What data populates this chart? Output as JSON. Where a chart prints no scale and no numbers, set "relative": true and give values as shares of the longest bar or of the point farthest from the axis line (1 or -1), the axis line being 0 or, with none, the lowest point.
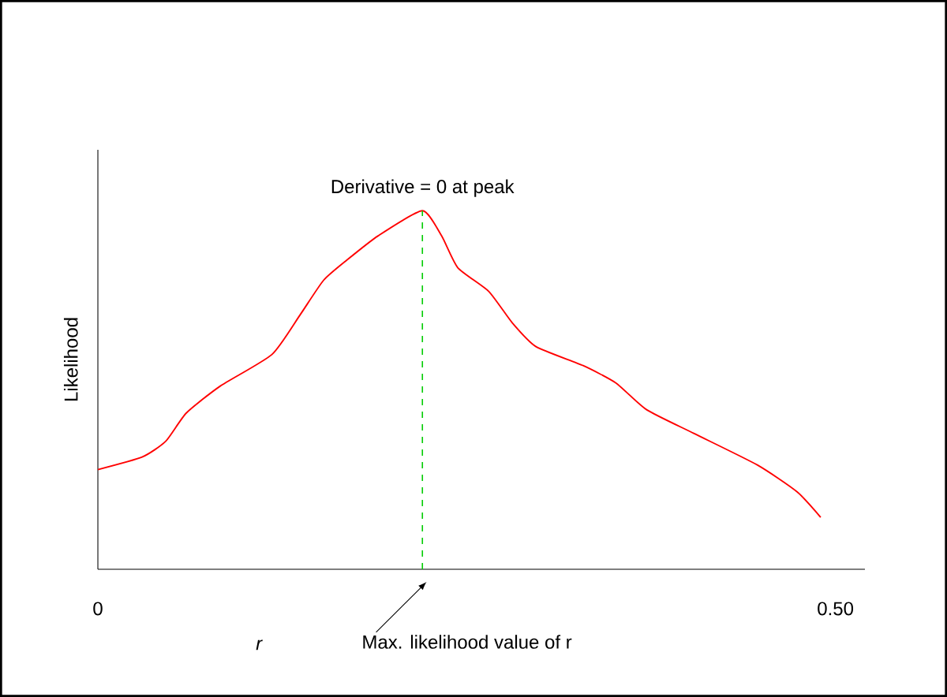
{
  "chart_data": {
    "type": "line",
    "relative": true,
    "ylabel": "Likelihood",
    "xlabel": "r",
    "xlim": [
      0,
      0.52
    ],
    "xticks": [
      0,
      {
        "value": 0.5,
        "label": "0.50"
      }
    ],
    "grid": false,
    "marker": "none",
    "line_style": "solid",
    "series": [
      {
        "color": "#ff0000",
        "x": [
          0,
          0.03,
          0.046,
          0.06,
          0.083,
          0.118,
          0.137,
          0.153,
          0.169,
          0.19,
          0.22,
          0.233,
          0.244,
          0.265,
          0.281,
          0.297,
          0.329,
          0.351,
          0.372,
          0.404,
          0.447,
          0.474,
          0.49
        ],
        "values": [
          0.278,
          0.313,
          0.357,
          0.436,
          0.511,
          0.599,
          0.709,
          0.806,
          0.863,
          0.93,
          1,
          0.93,
          0.841,
          0.775,
          0.687,
          0.621,
          0.568,
          0.52,
          0.445,
          0.379,
          0.291,
          0.216,
          0.145
        ]
      }
    ],
    "ref_lines": [
      {
        "axis": "x",
        "value": 0.22,
        "color": "#00cc00",
        "line_style": "dashed"
      }
    ],
    "annotations": [
      {
        "text": "Derivative = 0 at peak",
        "x": 0.22,
        "y": 1
      },
      "Max. likelihood value of r"
    ]
  }
}
